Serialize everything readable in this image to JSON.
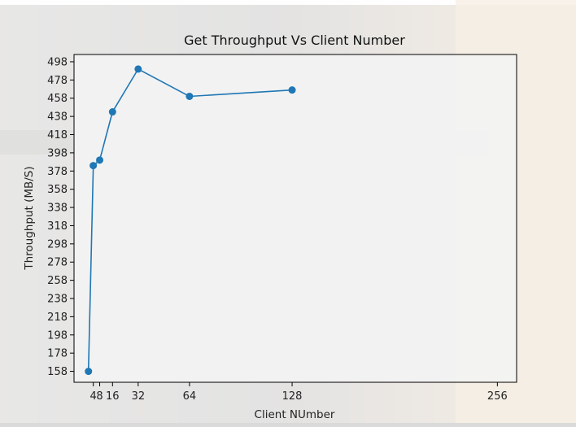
{
  "chart_data": {
    "type": "line",
    "title": "Get Throughput Vs Client Number",
    "xlabel": "Client NUmber",
    "ylabel": "Throughput (MB/S)",
    "x_ticks": [
      "4",
      "8",
      "16",
      "32",
      "64",
      "128",
      "256"
    ],
    "y_ticks": [
      "158",
      "178",
      "198",
      "218",
      "238",
      "258",
      "278",
      "298",
      "318",
      "338",
      "358",
      "378",
      "398",
      "418",
      "438",
      "458",
      "478",
      "498"
    ],
    "xlim": [
      -8,
      268
    ],
    "ylim": [
      146,
      506
    ],
    "grid": false,
    "series": [
      {
        "color": "#1f77b4",
        "marker": "circle",
        "points": [
          {
            "x": 1,
            "y": 158
          },
          {
            "x": 4,
            "y": 384
          },
          {
            "x": 8,
            "y": 390
          },
          {
            "x": 16,
            "y": 443
          },
          {
            "x": 32,
            "y": 490
          },
          {
            "x": 64,
            "y": 460
          },
          {
            "x": 128,
            "y": 467
          }
        ]
      }
    ],
    "tick_positions": [
      4,
      8,
      16,
      32,
      64,
      128,
      256
    ]
  },
  "colors": {
    "line": "#1f77b4",
    "plot_background": "rgba(242,242,242,0.95)"
  }
}
